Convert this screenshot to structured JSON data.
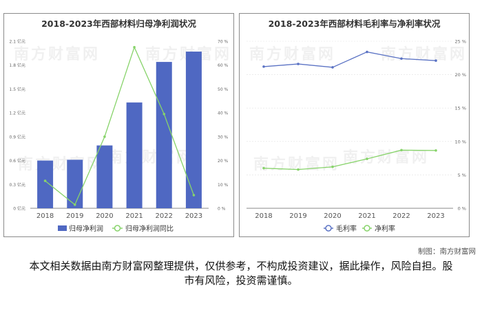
{
  "credit": "制图：南方财富网",
  "disclaimer": "本文相关数据由南方财富网整理提供，仅供参考，不构成投资建议，据此操作，风险自担。股市有风险，投资需谨慎。",
  "watermark": "南方财富网",
  "colors": {
    "bar": "#4f68c2",
    "green_line": "#87d36a",
    "blue_line": "#5a72c4",
    "axis_text": "#666666",
    "grid": "#e2e2e2"
  },
  "chart_data": [
    {
      "type": "bar+line",
      "title": "2018-2023年西部材料归母净利润状况",
      "categories": [
        "2018",
        "2019",
        "2020",
        "2021",
        "2022",
        "2023"
      ],
      "y_left": {
        "ticks": [
          "0 亿元",
          "0.3 亿元",
          "0.6 亿元",
          "0.9 亿元",
          "1.2 亿元",
          "1.5 亿元",
          "1.8 亿元",
          "2.1 亿元"
        ],
        "range": [
          0,
          2.1
        ]
      },
      "y_right": {
        "ticks": [
          "0 %",
          "10 %",
          "20 %",
          "30 %",
          "40 %",
          "50 %",
          "60 %",
          "70 %"
        ],
        "range": [
          0,
          70
        ]
      },
      "series": [
        {
          "name": "归母净利润",
          "type": "bar",
          "axis": "left",
          "values": [
            0.6,
            0.61,
            0.79,
            1.33,
            1.84,
            1.97
          ]
        },
        {
          "name": "归母净利润同比",
          "type": "line",
          "axis": "right",
          "values": [
            11.5,
            1.5,
            30,
            67.5,
            39.5,
            5.5
          ]
        }
      ],
      "legend_position": "bottom"
    },
    {
      "type": "line",
      "title": "2018-2023年西部材料毛利率与净利率状况",
      "categories": [
        "2018",
        "2019",
        "2020",
        "2021",
        "2022",
        "2023"
      ],
      "y_right": {
        "ticks": [
          "0 %",
          "5 %",
          "10 %",
          "15 %",
          "20 %",
          "25 %"
        ],
        "range": [
          0,
          25
        ]
      },
      "series": [
        {
          "name": "毛利率",
          "color": "blue",
          "values": [
            21.2,
            21.6,
            21.1,
            23.4,
            22.4,
            22.1
          ]
        },
        {
          "name": "净利率",
          "color": "green",
          "values": [
            6.0,
            5.8,
            6.2,
            7.4,
            8.7,
            8.65
          ]
        }
      ],
      "legend_position": "bottom"
    }
  ]
}
